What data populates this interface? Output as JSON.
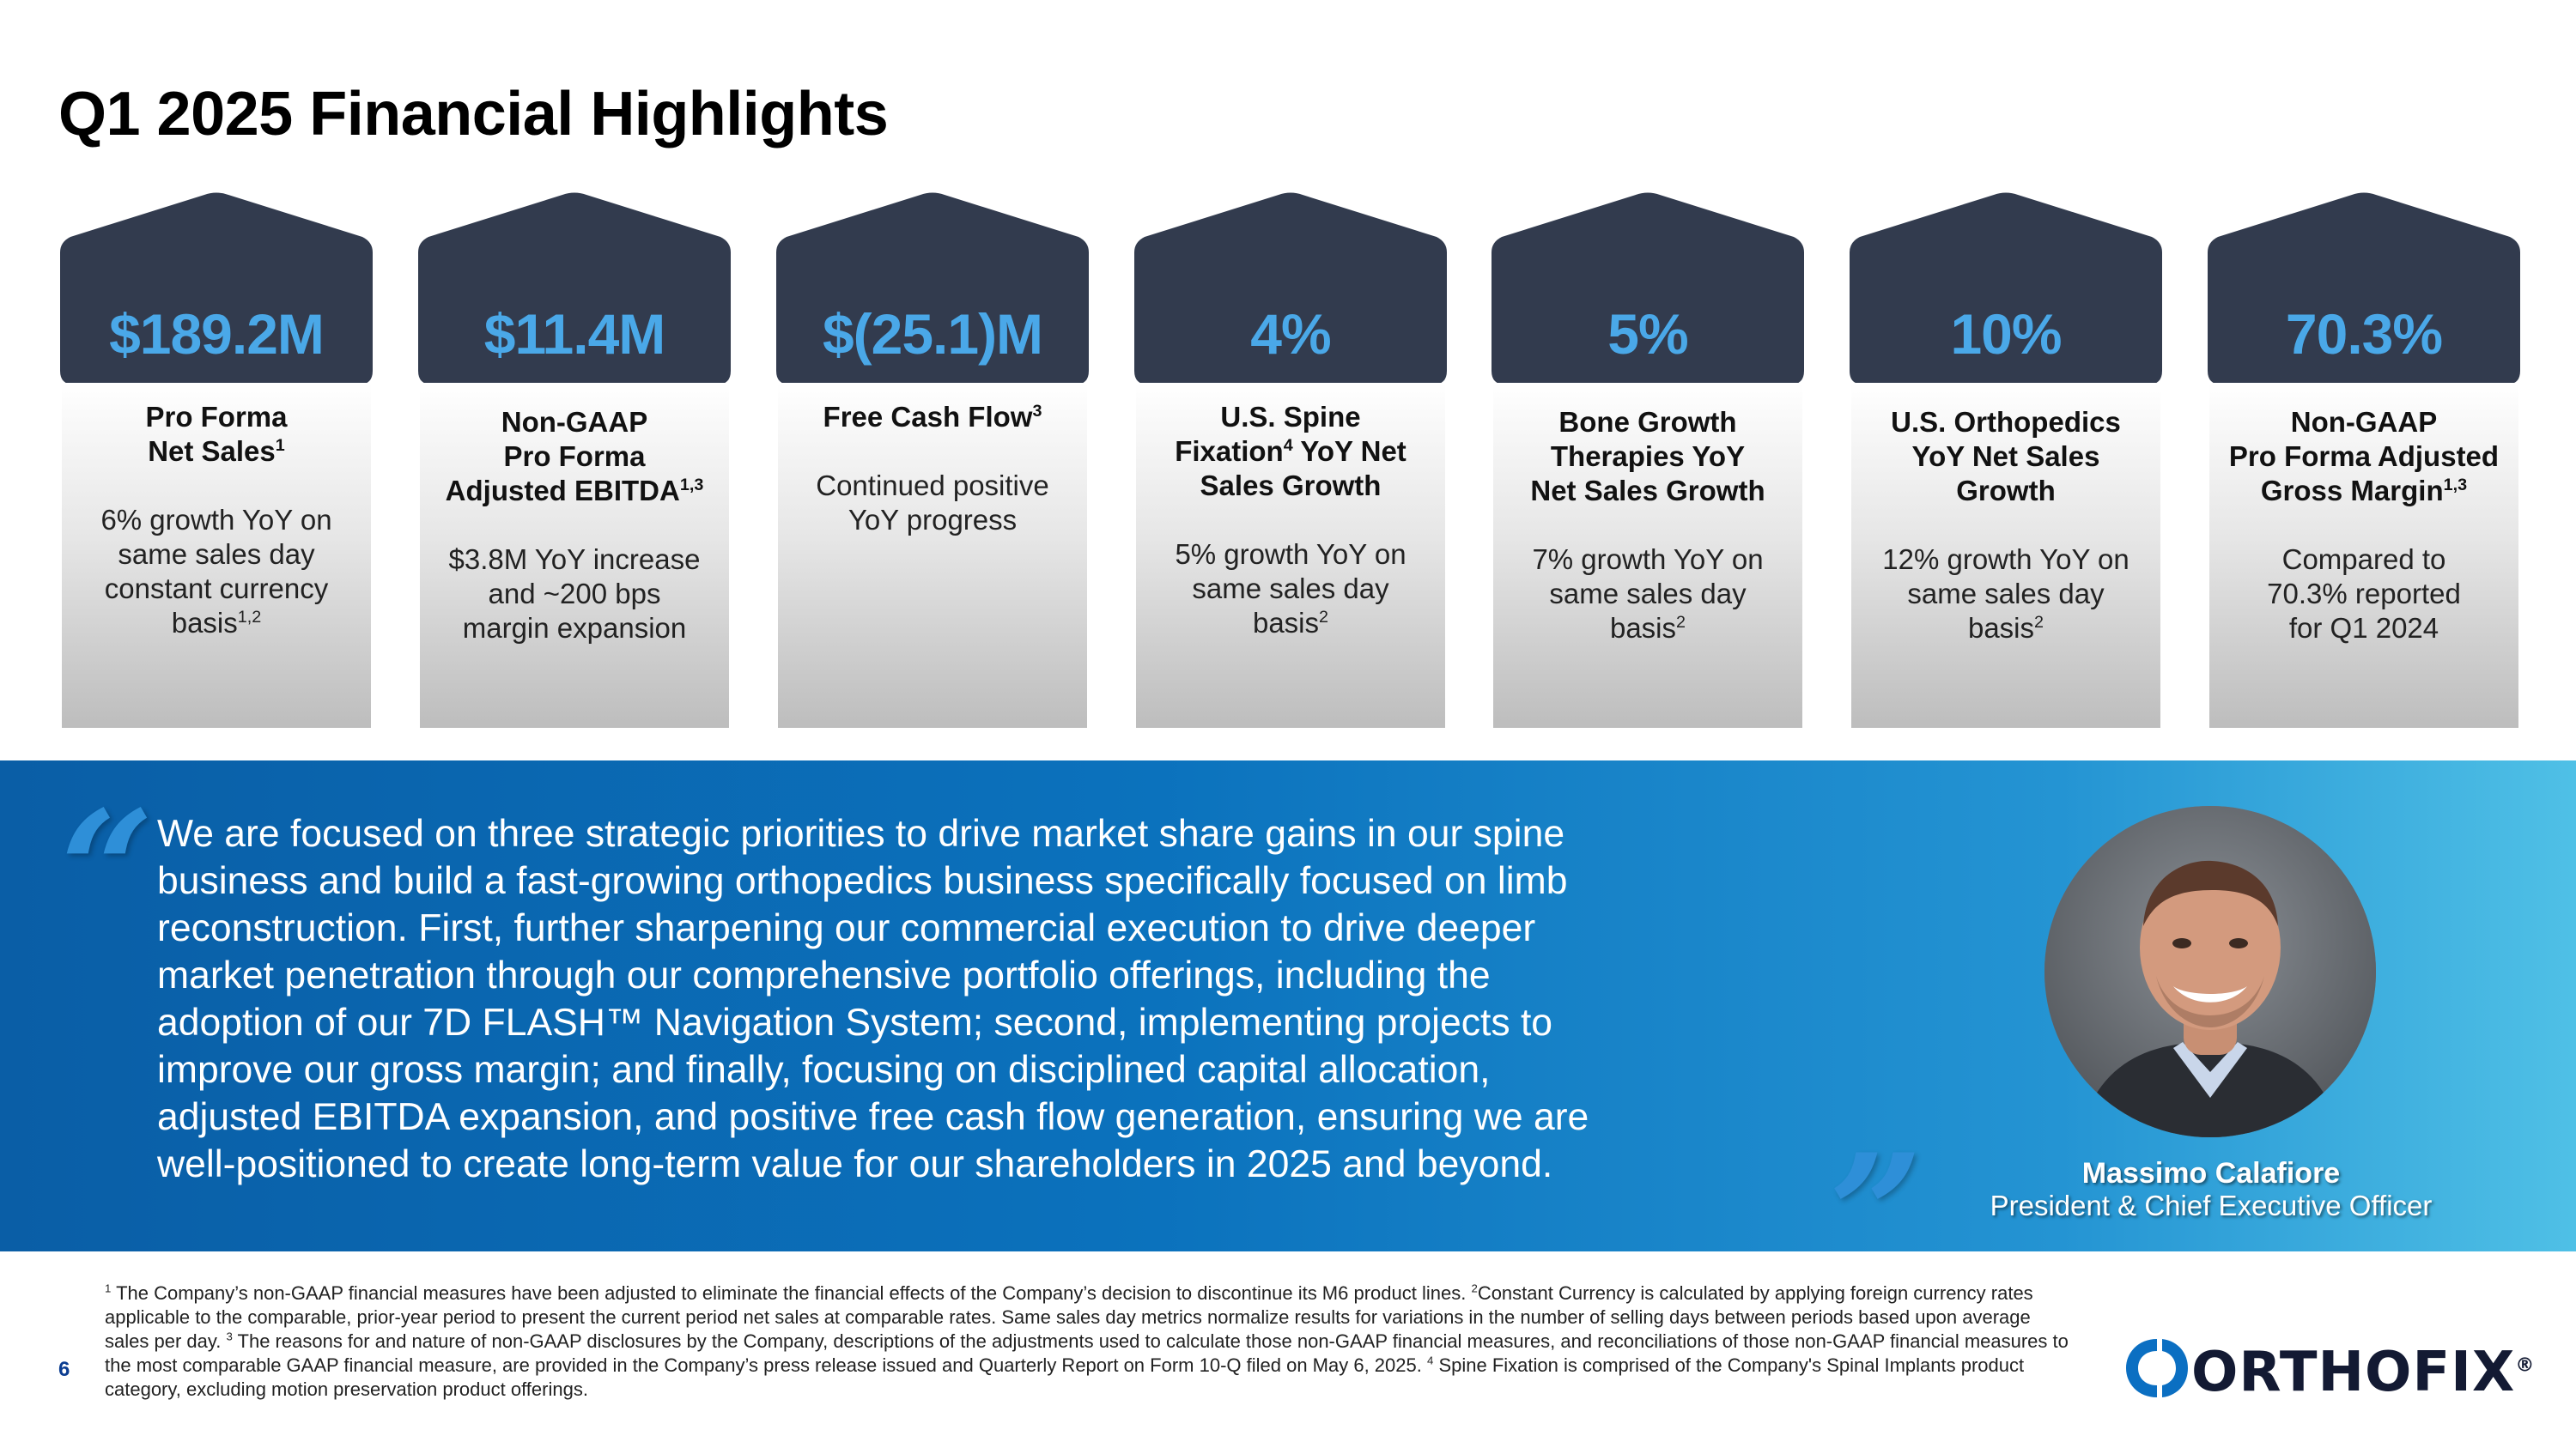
{
  "title": "Q1 2025 Financial Highlights",
  "colors": {
    "roof": "#323b4e",
    "metric": "#4aa8e8",
    "band_start": "#0a5ea6",
    "band_end": "#4fc0e6",
    "logo_blue": "#0b6fc2",
    "logo_text": "#131a33"
  },
  "cards": [
    {
      "metric": "$189.2M",
      "label_lines": [
        "Pro Forma",
        "Net Sales"
      ],
      "label_sup": "1",
      "desc_lines": [
        "6% growth YoY on",
        "same sales day",
        "constant currency",
        "basis"
      ],
      "desc_sup": "1,2"
    },
    {
      "metric": "$11.4M",
      "label_lines": [
        "Non-GAAP",
        "Pro Forma",
        "Adjusted EBITDA"
      ],
      "label_sup": "1,3",
      "desc_lines": [
        "$3.8M YoY increase",
        "and ~200 bps",
        "margin expansion"
      ],
      "desc_sup": ""
    },
    {
      "metric": "$(25.1)M",
      "label_lines": [
        "Free Cash Flow"
      ],
      "label_sup": "3",
      "desc_lines": [
        "Continued positive",
        "YoY progress"
      ],
      "desc_sup": ""
    },
    {
      "metric": "4%",
      "label_lines": [
        "U.S. Spine",
        "Fixation",
        "YoY Net",
        "Sales Growth"
      ],
      "label_sup": "4",
      "desc_lines": [
        "5% growth YoY on",
        "same sales day",
        "basis"
      ],
      "desc_sup": "2"
    },
    {
      "metric": "5%",
      "label_lines": [
        "Bone Growth",
        "Therapies YoY",
        "Net Sales Growth"
      ],
      "label_sup": "",
      "desc_lines": [
        "7% growth YoY on",
        "same sales day",
        "basis"
      ],
      "desc_sup": "2"
    },
    {
      "metric": "10%",
      "label_lines": [
        "U.S. Orthopedics",
        "YoY Net Sales",
        "Growth"
      ],
      "label_sup": "",
      "desc_lines": [
        "12% growth YoY on",
        "same sales day",
        "basis"
      ],
      "desc_sup": "2"
    },
    {
      "metric": "70.3%",
      "label_lines": [
        "Non-GAAP",
        "Pro Forma Adjusted",
        "Gross Margin"
      ],
      "label_sup": "1,3",
      "desc_lines": [
        "Compared to",
        "70.3% reported",
        "for Q1 2024"
      ],
      "desc_sup": ""
    }
  ],
  "quote": {
    "open_mark": "“",
    "close_mark": "”",
    "lines": [
      "We are focused on three strategic priorities to drive market share gains in our spine",
      "business and build a fast-growing orthopedics business specifically focused on limb",
      "reconstruction. First, further sharpening our commercial execution to drive deeper",
      "market penetration through our comprehensive portfolio offerings, including the",
      "adoption of our 7D FLASH™ Navigation System; second, implementing projects to",
      "improve our gross margin; and finally, focusing on disciplined capital allocation,",
      "adjusted EBITDA expansion, and positive free cash flow generation, ensuring we are",
      "well-positioned to create long-term value for our shareholders in 2025 and beyond."
    ]
  },
  "executive": {
    "name": "Massimo Calafiore",
    "title": "President & Chief Executive Officer"
  },
  "footnotes": {
    "sup_1": "1",
    "part_1": "The Company’s non-GAAP financial measures have been adjusted to eliminate the financial effects of the Company’s decision to discontinue its M6 product lines.",
    "sup_2": "2",
    "part_2": "Constant Currency is calculated by applying foreign currency rates applicable to the comparable, prior-year period to present the current period net sales at comparable rates. Same sales day metrics normalize results for variations in the number of selling days between periods based upon average sales per day.",
    "sup_3": "3",
    "part_3": "The reasons for and nature of non-GAAP disclosures by the Company, descriptions of the adjustments used to calculate those non-GAAP financial measures, and reconciliations of those non-GAAP financial measures to the most comparable GAAP financial measure, are provided in the Company’s press release issued and Quarterly Report on Form 10-Q filed on May 6, 2025.",
    "sup_4": "4",
    "part_4": "Spine Fixation is comprised of the Company's Spinal Implants product category, excluding motion preservation product offerings."
  },
  "page_number": "6",
  "logo": {
    "text": "ORTHOFIX",
    "registered": "®"
  }
}
